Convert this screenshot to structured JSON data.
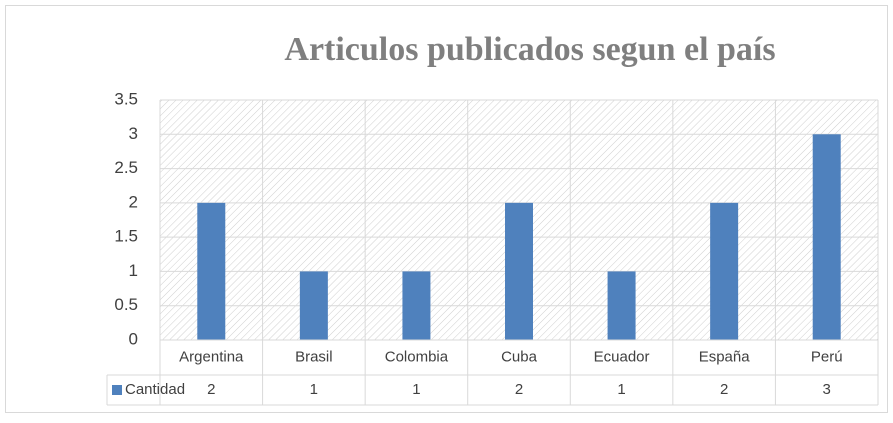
{
  "chart_data": {
    "type": "bar",
    "title": "Articulos publicados segun el país",
    "categories": [
      "Argentina",
      "Brasil",
      "Colombia",
      "Cuba",
      "Ecuador",
      "España",
      "Perú"
    ],
    "series": [
      {
        "name": "Cantidad",
        "color": "#4f81bd",
        "values": [
          2,
          1,
          1,
          2,
          1,
          2,
          3
        ]
      }
    ],
    "ylim": [
      0,
      3.5
    ],
    "yticks": [
      0,
      0.5,
      1,
      1.5,
      2,
      2.5,
      3,
      3.5
    ],
    "grid": true
  }
}
